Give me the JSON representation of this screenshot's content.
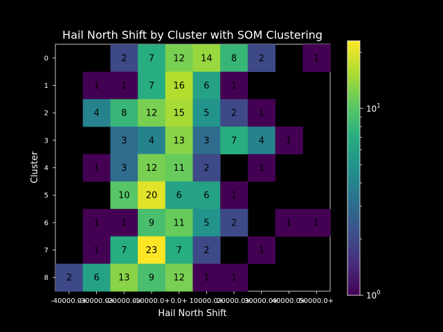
{
  "chart_data": {
    "type": "heatmap",
    "title": "Hail North Shift by Cluster with SOM Clustering",
    "xlabel": "Hail North Shift",
    "ylabel": "Cluster",
    "x_tick_labels": [
      "-40000.0+",
      "-30000.0+",
      "-20000.0+",
      "-10000.0+",
      "0.0+",
      "10000.0+",
      "20000.0+",
      "30000.0+",
      "40000.0+",
      "50000.0+"
    ],
    "y_tick_labels": [
      "0",
      "1",
      "2",
      "3",
      "4",
      "5",
      "6",
      "7",
      "8"
    ],
    "values": [
      [
        null,
        null,
        2,
        7,
        12,
        14,
        8,
        2,
        null,
        1
      ],
      [
        null,
        1,
        1,
        7,
        16,
        6,
        1,
        null,
        null,
        null
      ],
      [
        null,
        4,
        8,
        12,
        15,
        5,
        2,
        1,
        null,
        null
      ],
      [
        null,
        null,
        3,
        4,
        13,
        3,
        7,
        4,
        1,
        null
      ],
      [
        null,
        1,
        3,
        12,
        11,
        2,
        null,
        1,
        null,
        null
      ],
      [
        null,
        null,
        10,
        20,
        6,
        6,
        1,
        null,
        null,
        null
      ],
      [
        null,
        1,
        1,
        9,
        11,
        5,
        2,
        null,
        1,
        1
      ],
      [
        null,
        1,
        7,
        23,
        7,
        2,
        null,
        1,
        null,
        null
      ],
      [
        2,
        6,
        13,
        9,
        12,
        1,
        1,
        null,
        null,
        null
      ]
    ],
    "colorbar": {
      "scale": "log",
      "colormap": "viridis",
      "range": [
        1,
        23
      ],
      "tick_labels": [
        {
          "value": 1,
          "base": "10",
          "exp": "0"
        },
        {
          "value": 10,
          "base": "10",
          "exp": "1"
        }
      ]
    }
  }
}
